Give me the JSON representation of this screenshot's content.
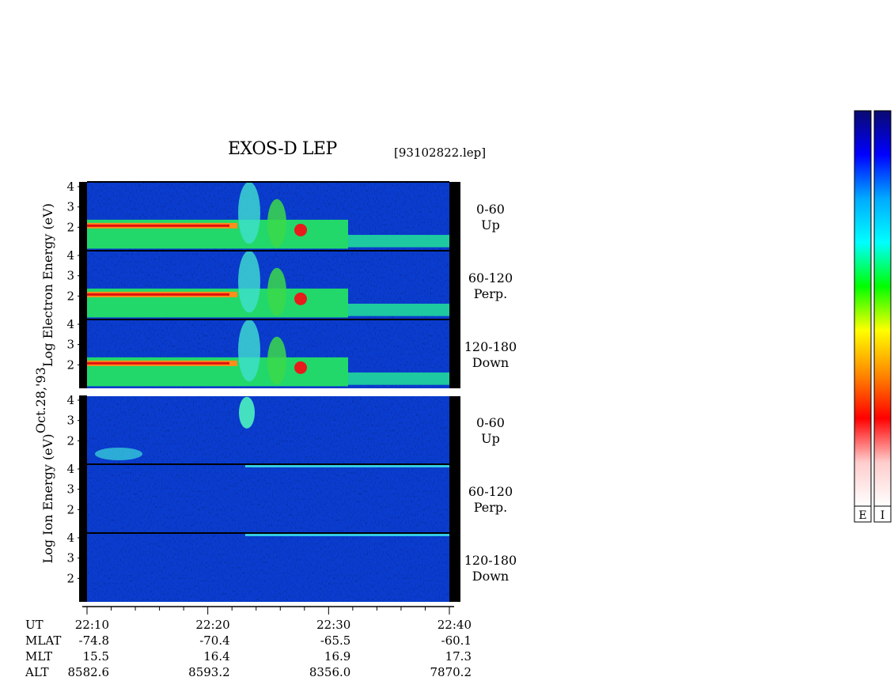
{
  "header": {
    "title": "EXOS-D LEP",
    "filename": "[93102822.lep]"
  },
  "date_label": "Oct.28,'93",
  "chart_data": {
    "type": "heatmap",
    "title": "EXOS-D LEP",
    "x_unit": "UT",
    "x_ticks": [
      "22:10",
      "22:20",
      "22:30",
      "22:40"
    ],
    "y_ticks": [
      "4",
      "3",
      "2"
    ],
    "groups": [
      {
        "ylabel_words": [
          "Log",
          "Electron",
          "Energy",
          "(eV)"
        ],
        "ylim": [
          1,
          4
        ],
        "species": "electron",
        "panels": [
          {
            "angle": "0-60",
            "direction": "Up"
          },
          {
            "angle": "60-120",
            "direction": "Perp."
          },
          {
            "angle": "120-180",
            "direction": "Down"
          }
        ]
      },
      {
        "ylabel_words": [
          "Log",
          "Ion",
          "Energy",
          "(eV)"
        ],
        "ylim": [
          1,
          4
        ],
        "species": "ion",
        "panels": [
          {
            "angle": "0-60",
            "direction": "Up"
          },
          {
            "angle": "60-120",
            "direction": "Perp."
          },
          {
            "angle": "120-180",
            "direction": "Down"
          }
        ]
      }
    ],
    "colorbars": [
      {
        "label": "E",
        "colors": [
          "#0a0a70",
          "#0000ff",
          "#00aaff",
          "#00ffff",
          "#00ff00",
          "#ffff00",
          "#ff8800",
          "#ff0000",
          "#ffcccc",
          "#ffffff"
        ]
      },
      {
        "label": "I",
        "colors": [
          "#0a0a70",
          "#0000ff",
          "#00aaff",
          "#00ffff",
          "#00ff00",
          "#ffff00",
          "#ff8800",
          "#ff0000",
          "#ffcccc",
          "#ffffff"
        ]
      }
    ],
    "orbit_table": {
      "rows": [
        {
          "label": "UT",
          "values": [
            "22:10",
            "22:20",
            "22:30",
            "22:40"
          ]
        },
        {
          "label": "MLAT",
          "values": [
            "-74.8",
            "-70.4",
            "-65.5",
            "-60.1"
          ]
        },
        {
          "label": "MLT",
          "values": [
            "15.5",
            "16.4",
            "16.9",
            "17.3"
          ]
        },
        {
          "label": "ALT",
          "values": [
            "8582.6",
            "8593.2",
            "8356.0",
            "7870.2"
          ]
        }
      ]
    }
  }
}
